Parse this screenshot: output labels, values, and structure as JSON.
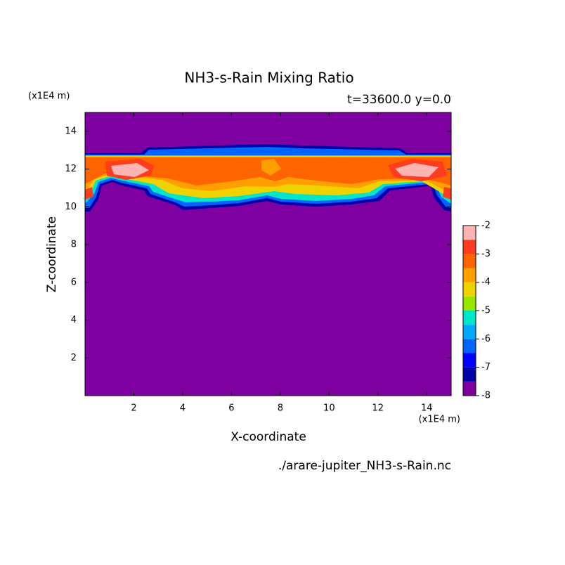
{
  "chart_data": {
    "type": "contour",
    "title": "NH3-s-Rain Mixing Ratio",
    "subtitle": "t=33600.0 y=0.0",
    "x_label": "X-coordinate",
    "y_label": "Z-coordinate",
    "x_unit": "(x1E4 m)",
    "y_unit": "(x1E4 m)",
    "file": "./arare-jupiter_NH3-s-Rain.nc",
    "xlim": [
      0,
      15
    ],
    "xticks": [
      2,
      4,
      6,
      8,
      10,
      12,
      14
    ],
    "ylim": [
      0,
      15
    ],
    "yticks": [
      2,
      4,
      6,
      8,
      10,
      12,
      14
    ],
    "levels": [
      -8,
      -7.5,
      -7,
      -6.5,
      -6,
      -5.5,
      -5,
      -4.5,
      -4,
      -3.5,
      -3,
      -2.5,
      -2
    ],
    "colors": [
      "#7f00a0",
      "#0000a8",
      "#0000ff",
      "#0064ff",
      "#00a8ff",
      "#00e6c8",
      "#96e600",
      "#f0d200",
      "#ffa000",
      "#ff6400",
      "#ff3c1e",
      "#ffb4b4"
    ],
    "colorbar_ticks": [
      -8,
      -7,
      -6,
      -5,
      -4,
      -3,
      -2
    ]
  }
}
